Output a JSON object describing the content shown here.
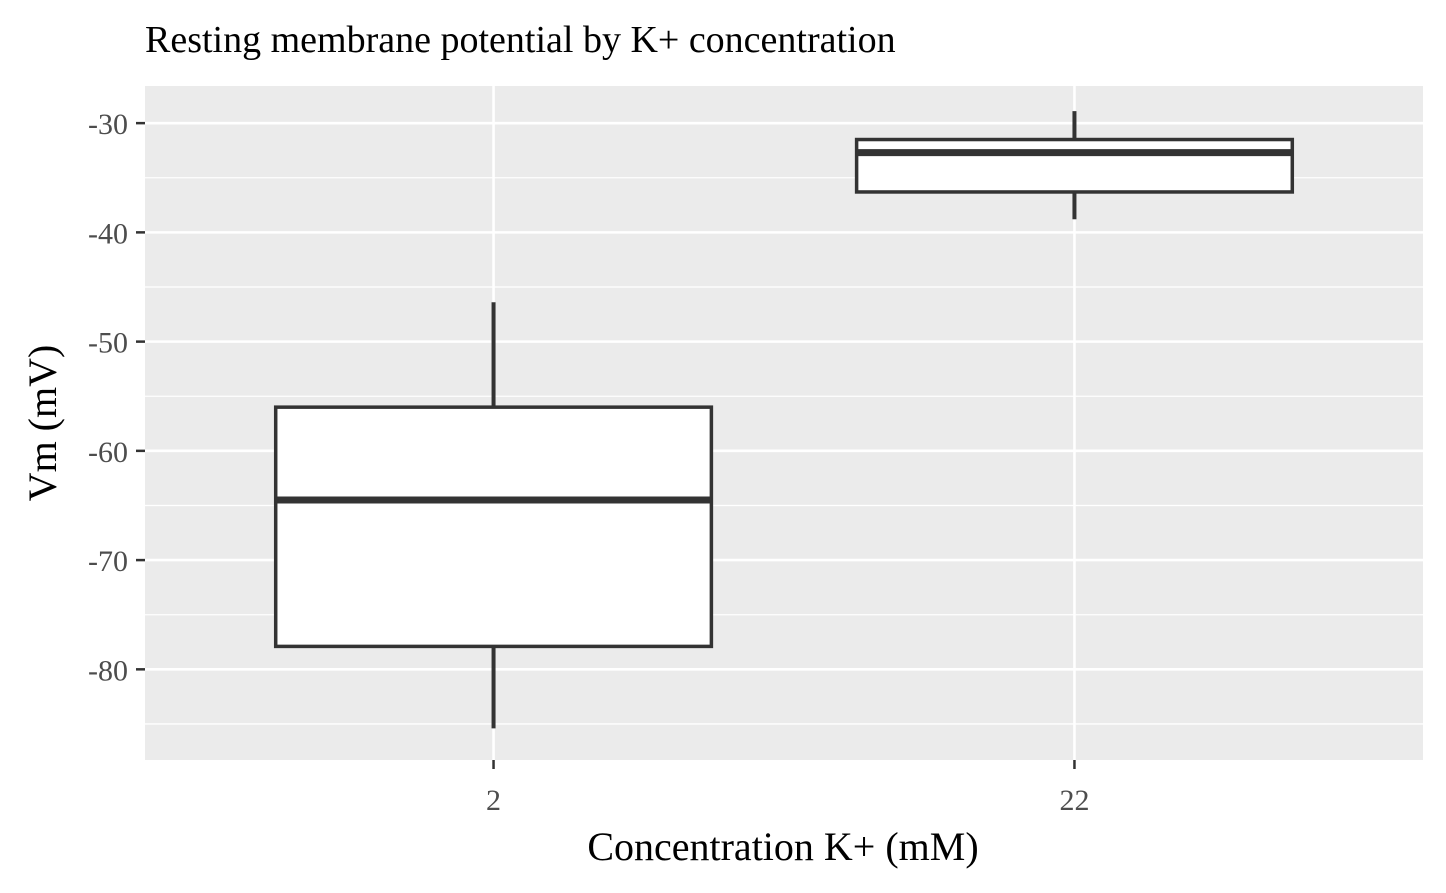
{
  "chart_data": {
    "type": "box",
    "title": "Resting membrane potential by K+ concentration",
    "xlabel": "Concentration K+ (mM)",
    "ylabel": "Vm (mV)",
    "categories": [
      "2",
      "22"
    ],
    "ylim": [
      -88.3,
      -26.6
    ],
    "yticks": [
      -80,
      -70,
      -60,
      -50,
      -40,
      -30
    ],
    "ytick_labels": [
      "-80",
      "-70",
      "-60",
      "-50",
      "-40",
      "-30"
    ],
    "boxes": [
      {
        "category": "2",
        "min": -85.4,
        "q1": -77.9,
        "median": -64.5,
        "q3": -56.0,
        "max": -46.4
      },
      {
        "category": "22",
        "min": -38.8,
        "q1": -36.3,
        "median": -32.7,
        "q3": -31.5,
        "max": -28.9
      }
    ],
    "grid": true,
    "colors": {
      "panel": "#ebebeb",
      "grid": "#ffffff",
      "box_fill": "#ffffff",
      "box_line": "#333333",
      "tick_text": "#4d4d4d"
    }
  }
}
